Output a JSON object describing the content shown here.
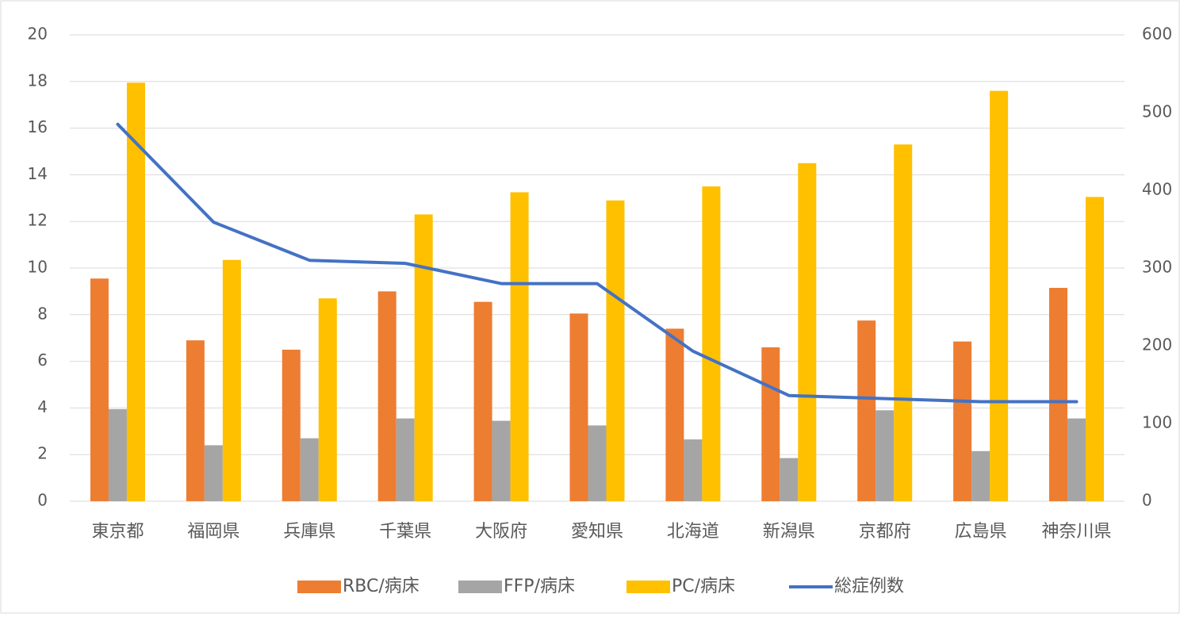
{
  "chart_data": {
    "type": "bar_line",
    "categories": [
      "東京都",
      "福岡県",
      "兵庫県",
      "千葉県",
      "大阪府",
      "愛知県",
      "北海道",
      "新潟県",
      "京都府",
      "広島県",
      "神奈川県"
    ],
    "series": [
      {
        "name": "RBC/病床",
        "color": "#ed7d31",
        "type": "bar",
        "values": [
          9.55,
          6.9,
          6.5,
          9.0,
          8.55,
          8.05,
          7.4,
          6.6,
          7.75,
          6.85,
          9.15
        ]
      },
      {
        "name": "FFP/病床",
        "color": "#a5a5a5",
        "type": "bar",
        "values": [
          3.95,
          2.4,
          2.7,
          3.55,
          3.45,
          3.25,
          2.65,
          1.85,
          3.9,
          2.15,
          3.55
        ]
      },
      {
        "name": "PC/病床",
        "color": "#ffc000",
        "type": "bar",
        "values": [
          17.95,
          10.35,
          8.7,
          12.3,
          13.25,
          12.9,
          13.5,
          14.5,
          15.3,
          17.6,
          13.05
        ]
      },
      {
        "name": "総症例数",
        "color": "#4472c4",
        "type": "line",
        "axis": "y2",
        "values": [
          485,
          359,
          310,
          306,
          280,
          280,
          193,
          136,
          132,
          128,
          128
        ]
      }
    ],
    "ylim": [
      0,
      20
    ],
    "yticks": [
      0,
      2,
      4,
      6,
      8,
      10,
      12,
      14,
      16,
      18,
      20
    ],
    "y2lim": [
      0,
      600
    ],
    "y2ticks": [
      0,
      100,
      200,
      300,
      400,
      500,
      600
    ],
    "grid": true,
    "legend": "bottom"
  }
}
